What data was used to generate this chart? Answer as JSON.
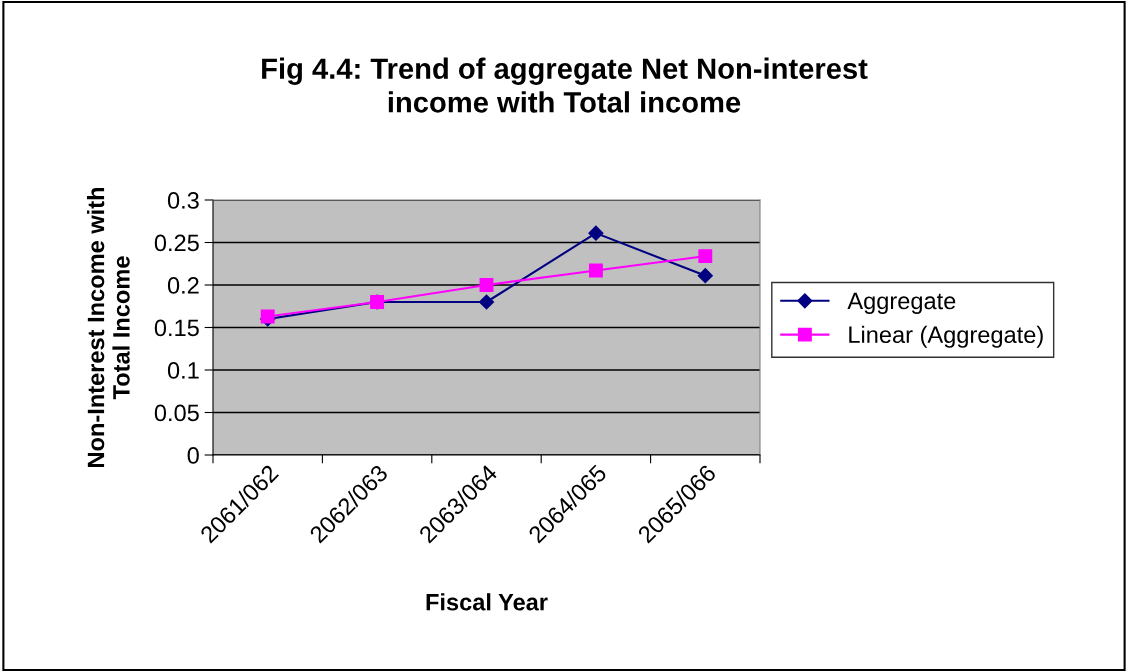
{
  "chart_data": {
    "type": "line",
    "title": "Fig 4.4: Trend of aggregate Net Non-interest\nincome with Total income",
    "xlabel": "Fiscal Year",
    "ylabel": "Non-Interest Income with\nTotal Income",
    "categories": [
      "2061/062",
      "2062/063",
      "2063/064",
      "2064/065",
      "2065/066"
    ],
    "series": [
      {
        "name": "Aggregate",
        "color": "#000080",
        "marker": "diamond",
        "values": [
          0.16,
          0.18,
          0.18,
          0.261,
          0.211
        ]
      },
      {
        "name": "Linear (Aggregate)",
        "color": "#ff00ff",
        "marker": "square",
        "values": [
          0.163,
          0.18,
          0.2,
          0.217,
          0.234
        ]
      }
    ],
    "ylim": [
      0,
      0.3
    ],
    "yticks": [
      {
        "value": 0,
        "label": "0"
      },
      {
        "value": 0.05,
        "label": "0.05"
      },
      {
        "value": 0.1,
        "label": "0.1"
      },
      {
        "value": 0.15,
        "label": "0.15"
      },
      {
        "value": 0.2,
        "label": "0.2"
      },
      {
        "value": 0.25,
        "label": "0.25"
      },
      {
        "value": 0.3,
        "label": "0.3"
      }
    ],
    "grid": "y",
    "legend": "right",
    "line_style": "solid"
  }
}
